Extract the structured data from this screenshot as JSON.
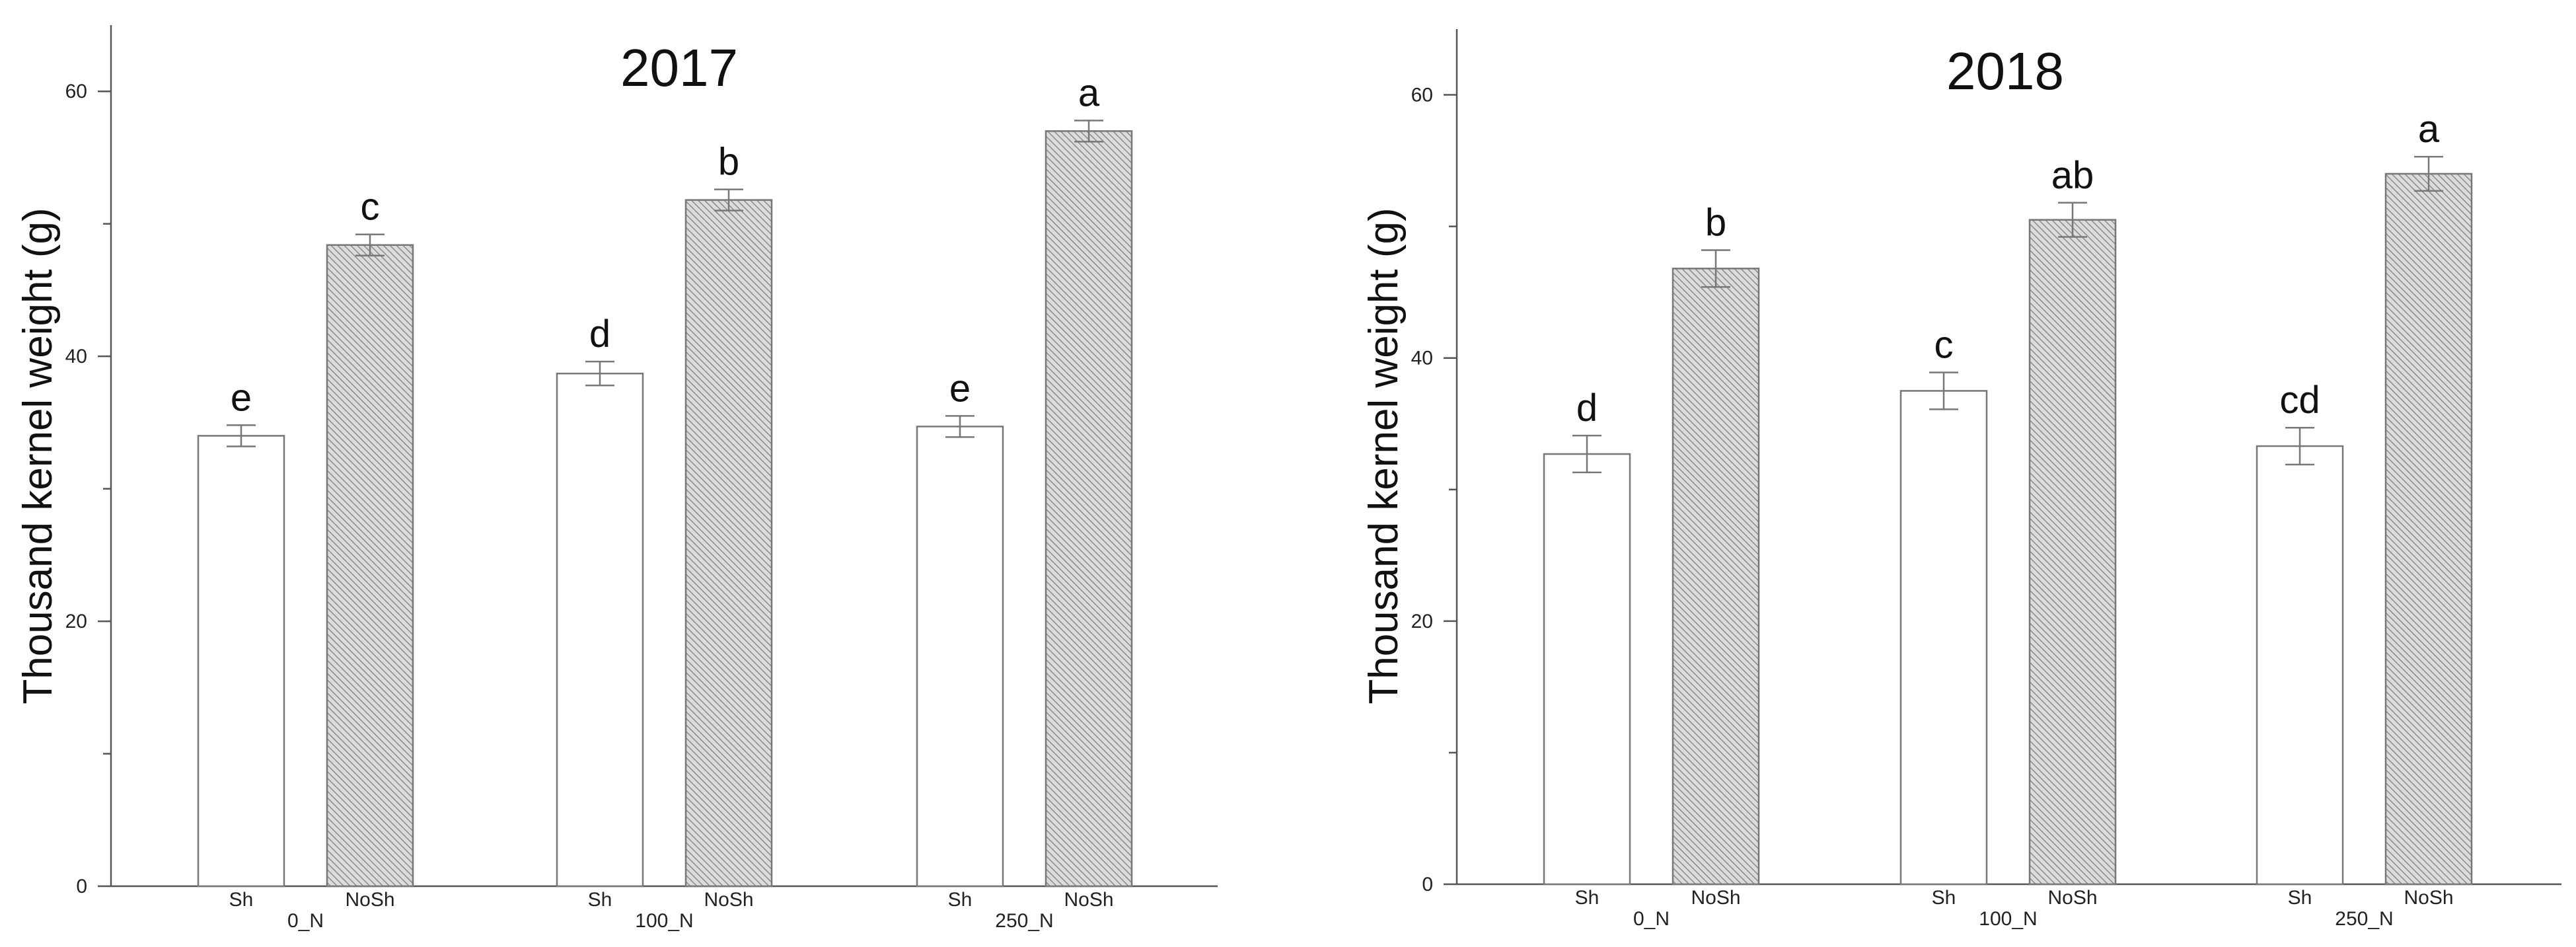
{
  "chart_data": [
    {
      "type": "bar",
      "title": "2017",
      "xlabel": "",
      "ylabel": "Thousand kernel weight (g)",
      "ylim": [
        0,
        65
      ],
      "yticks": [
        0,
        20,
        40,
        60
      ],
      "grid": false,
      "categories": [
        "0_N",
        "100_N",
        "250_N"
      ],
      "series": [
        {
          "name": "Sh",
          "values": [
            34,
            38.7,
            34.7
          ],
          "errors": [
            0.8,
            0.9,
            0.8
          ],
          "letters": [
            "e",
            "d",
            "e"
          ],
          "pattern": "none"
        },
        {
          "name": "NoSh",
          "values": [
            48.4,
            51.8,
            57
          ],
          "errors": [
            0.8,
            0.8,
            0.8
          ],
          "letters": [
            "c",
            "b",
            "a"
          ],
          "pattern": "hatch"
        }
      ]
    },
    {
      "type": "bar",
      "title": "2018",
      "xlabel": "",
      "ylabel": "Thousand kernel weight (g)",
      "ylim": [
        0,
        65
      ],
      "yticks": [
        0,
        20,
        40,
        60
      ],
      "grid": false,
      "categories": [
        "0_N",
        "100_N",
        "250_N"
      ],
      "series": [
        {
          "name": "Sh",
          "values": [
            32.7,
            37.5,
            33.3
          ],
          "errors": [
            1.4,
            1.4,
            1.4
          ],
          "letters": [
            "d",
            "c",
            "cd"
          ],
          "pattern": "none"
        },
        {
          "name": "NoSh",
          "values": [
            46.8,
            50.5,
            54
          ],
          "errors": [
            1.4,
            1.3,
            1.3
          ],
          "letters": [
            "b",
            "ab",
            "a"
          ],
          "pattern": "hatch"
        }
      ]
    }
  ]
}
